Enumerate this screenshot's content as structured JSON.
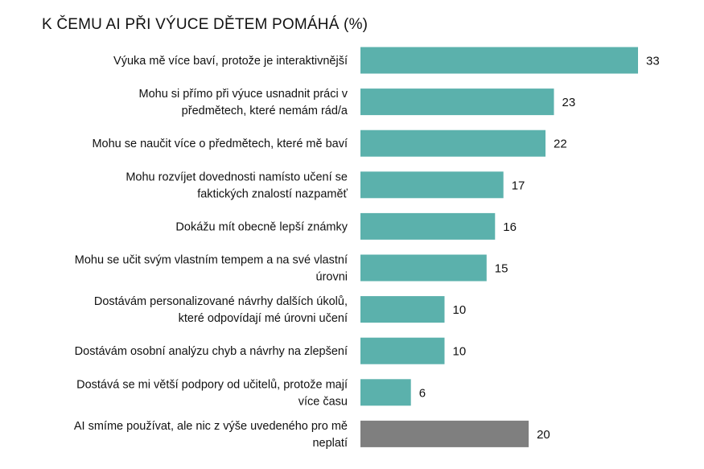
{
  "chart_data": {
    "type": "bar",
    "orientation": "horizontal",
    "title": "K ČEMU AI PŘI VÝUCE DĚTEM POMÁHÁ (%)",
    "xlabel": "",
    "ylabel": "",
    "xlim": [
      0,
      33
    ],
    "grid": false,
    "legend": "none",
    "colors": {
      "default": "#5BB1AC",
      "highlight": "#7F7F7F"
    },
    "categories": [
      [
        "Výuka mě více baví, protože je interaktivnější"
      ],
      [
        "Mohu si přímo při výuce  usnadnit práci v",
        "předmětech, které nemám rád/a"
      ],
      [
        "Mohu se naučit více o předmětech, které mě baví"
      ],
      [
        "Mohu rozvíjet dovednosti namísto učení se",
        "faktických znalostí nazpaměť"
      ],
      [
        "Dokážu mít obecně lepší známky"
      ],
      [
        "Mohu se učit svým vlastním tempem a na své vlastní",
        "úrovni"
      ],
      [
        "Dostávám personalizované návrhy dalších úkolů,",
        "které odpovídají mé úrovni učení"
      ],
      [
        "Dostávám osobní analýzu chyb a návrhy na zlepšení"
      ],
      [
        "Dostává se mi větší podpory od učitelů, protože mají",
        "více času"
      ],
      [
        "AI smíme používat, ale nic z výše uvedeného pro mě",
        "neplatí"
      ]
    ],
    "values": [
      33,
      23,
      22,
      17,
      16,
      15,
      10,
      10,
      6,
      20
    ],
    "highlight_index": 9
  }
}
